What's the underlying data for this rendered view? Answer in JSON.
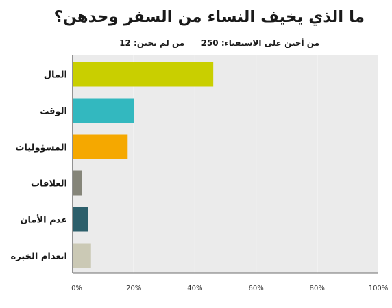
{
  "header": {
    "title": "ما الذي يخيف النساء من السفر وحدهن؟",
    "answered_label": "من أجبن على الاستفتاء:",
    "answered_value": "250",
    "skipped_label": "من لم يجبن:",
    "skipped_value": "12"
  },
  "chart_data": {
    "type": "bar",
    "orientation": "horizontal",
    "title": "ما الذي يخيف النساء من السفر وحدهن؟",
    "categories": [
      "المال",
      "الوقت",
      "المسؤوليات",
      "العلاقات",
      "عدم الأمان",
      "انعدام الخبرة"
    ],
    "values": [
      46,
      20,
      18,
      3,
      5,
      6
    ],
    "colors": [
      "#c9cf00",
      "#33b8bf",
      "#f5a800",
      "#858579",
      "#2c5f6b",
      "#cbc9b5"
    ],
    "xlim": [
      0,
      100
    ],
    "xticks": [
      "0%",
      "20%",
      "40%",
      "60%",
      "80%",
      "100%"
    ],
    "grid": true,
    "plot_background": "#ebebeb"
  }
}
